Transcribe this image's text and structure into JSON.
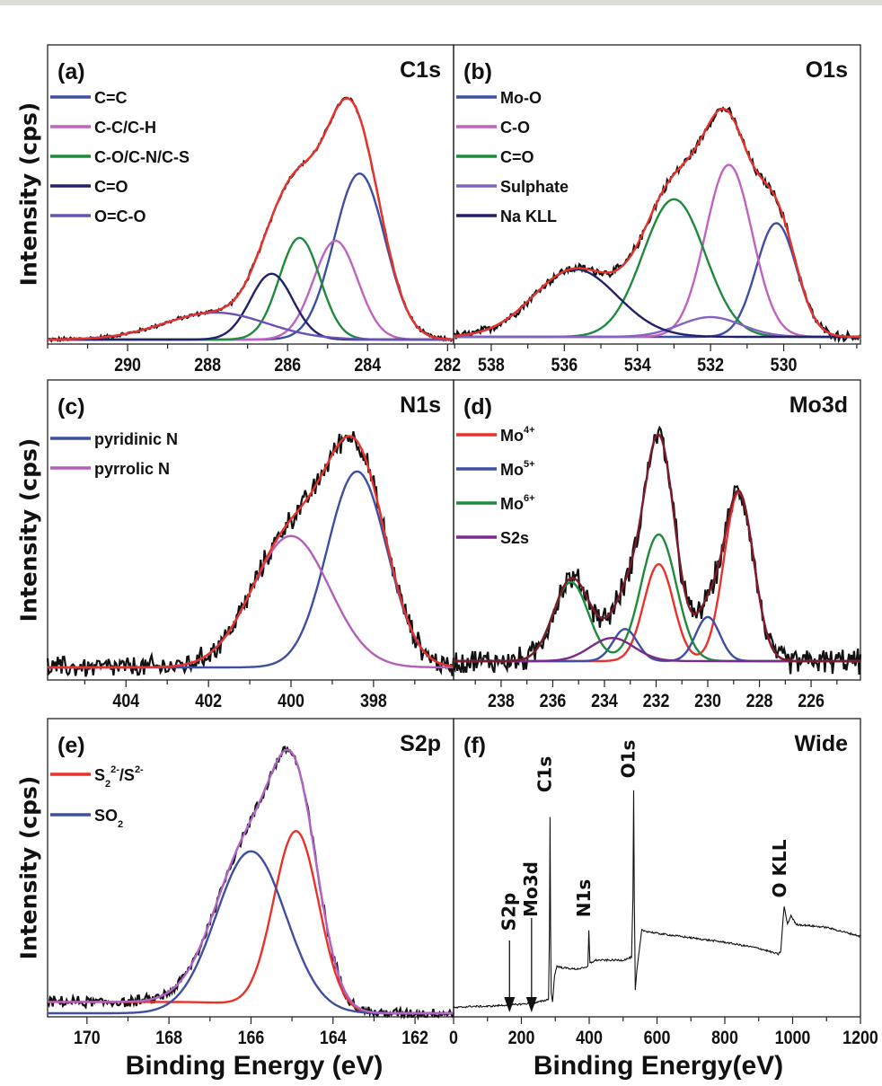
{
  "y_label": "Intensity (cps)",
  "chart_data": [
    {
      "id": "a",
      "type": "line",
      "label": "(a)",
      "title": "C1s",
      "xlim": [
        292,
        281.85
      ],
      "ylim": [
        0,
        1
      ],
      "xticks": [
        290,
        288,
        286,
        284,
        282
      ],
      "minor_step": 1,
      "baseline": 0.015,
      "envelope_color": "#e8322b",
      "components": [
        {
          "name": [
            {
              "t": "C=C"
            }
          ],
          "center": 284.2,
          "height": 0.555,
          "fwhm": 1.5,
          "color": "#3d4fa3"
        },
        {
          "name": [
            {
              "t": "C-C/C-H"
            }
          ],
          "center": 284.8,
          "height": 0.33,
          "fwhm": 1.3,
          "color": "#c262c0"
        },
        {
          "name": [
            {
              "t": "C-O/C-N/C-S"
            }
          ],
          "center": 285.7,
          "height": 0.34,
          "fwhm": 1.2,
          "color": "#1f8a3c"
        },
        {
          "name": [
            {
              "t": "C=O"
            }
          ],
          "center": 286.4,
          "height": 0.22,
          "fwhm": 1.25,
          "color": "#22226a"
        },
        {
          "name": [
            {
              "t": "O=C-O"
            }
          ],
          "center": 287.8,
          "height": 0.09,
          "fwhm": 3.0,
          "color": "#6a52b4"
        }
      ]
    },
    {
      "id": "b",
      "type": "line",
      "label": "(b)",
      "title": "O1s",
      "xlim": [
        539.03,
        527.9
      ],
      "ylim": [
        0,
        1
      ],
      "xticks": [
        538,
        536,
        534,
        532,
        530
      ],
      "minor_step": 1,
      "baseline": 0.024,
      "envelope_color": "#e8322b",
      "components": [
        {
          "name": [
            {
              "t": "Mo-O"
            }
          ],
          "center": 530.2,
          "height": 0.38,
          "fwhm": 1.3,
          "color": "#3d4fa3"
        },
        {
          "name": [
            {
              "t": "C-O"
            }
          ],
          "center": 531.5,
          "height": 0.575,
          "fwhm": 1.5,
          "color": "#c262c0"
        },
        {
          "name": [
            {
              "t": "C=O"
            }
          ],
          "center": 533.0,
          "height": 0.46,
          "fwhm": 2.0,
          "color": "#1f8a3c"
        },
        {
          "name": [
            {
              "t": "Sulphate"
            }
          ],
          "center": 532.0,
          "height": 0.066,
          "fwhm": 2.0,
          "color": "#8462c4"
        },
        {
          "name": [
            {
              "t": "Na KLL"
            }
          ],
          "center": 535.7,
          "height": 0.226,
          "fwhm": 2.7,
          "color": "#22226a"
        }
      ]
    },
    {
      "id": "c",
      "type": "line",
      "label": "(c)",
      "title": "N1s",
      "xlim": [
        405.9,
        396.06
      ],
      "ylim": [
        0,
        1
      ],
      "xticks": [
        404,
        402,
        400,
        398
      ],
      "minor_step": 1,
      "baseline": 0.042,
      "envelope_color": "#e8322b",
      "components": [
        {
          "name": [
            {
              "t": "pyridinic N"
            }
          ],
          "center": 398.4,
          "height": 0.653,
          "fwhm": 1.7,
          "color": "#3d4fa3"
        },
        {
          "name": [
            {
              "t": "pyrrolic N"
            }
          ],
          "center": 400.0,
          "height": 0.438,
          "fwhm": 2.2,
          "color": "#b35fb8"
        }
      ]
    },
    {
      "id": "d",
      "type": "line",
      "label": "(d)",
      "title": "Mo3d",
      "xlim": [
        239.84,
        224.09
      ],
      "ylim": [
        0,
        1
      ],
      "xticks": [
        238,
        236,
        234,
        232,
        230,
        228,
        226
      ],
      "minor_step": 1,
      "baseline": 0.063,
      "envelope_color": "#7a1c2c",
      "components": [
        {
          "name": [
            {
              "t": "Mo"
            },
            {
              "t": "4+",
              "sup": true
            }
          ],
          "color": "#e8322b",
          "peaks": [
            {
              "center": 228.8,
              "height": 0.563,
              "fwhm": 1.35
            },
            {
              "center": 231.9,
              "height": 0.323,
              "fwhm": 1.35
            }
          ]
        },
        {
          "name": [
            {
              "t": "Mo"
            },
            {
              "t": "5+",
              "sup": true
            }
          ],
          "color": "#3d4fa3",
          "peaks": [
            {
              "center": 230.0,
              "height": 0.147,
              "fwhm": 1.1
            },
            {
              "center": 233.2,
              "height": 0.107,
              "fwhm": 1.1
            }
          ]
        },
        {
          "name": [
            {
              "t": "Mo"
            },
            {
              "t": "6+",
              "sup": true
            }
          ],
          "color": "#1f8a3c",
          "peaks": [
            {
              "center": 231.9,
              "height": 0.422,
              "fwhm": 1.6
            },
            {
              "center": 235.3,
              "height": 0.263,
              "fwhm": 1.6
            }
          ]
        },
        {
          "name": [
            {
              "t": "S2s"
            }
          ],
          "color": "#7a2a8a",
          "peaks": [
            {
              "center": 233.7,
              "height": 0.077,
              "fwhm": 2.0
            }
          ]
        }
      ]
    },
    {
      "id": "e",
      "type": "line",
      "label": "(e)",
      "title": "S2p",
      "xlim": [
        170.96,
        161.06
      ],
      "ylim": [
        0,
        1
      ],
      "xticks": [
        170,
        168,
        166,
        164,
        162
      ],
      "minor_step": 1,
      "baseline": 0.012,
      "envelope_color": "#b064c4",
      "components": [
        {
          "name": [
            {
              "t": "S"
            },
            {
              "t": "2",
              "sub": true
            },
            {
              "t": "2-",
              "sup": true
            },
            {
              "t": "/S"
            },
            {
              "t": "2-",
              "sup": true
            }
          ],
          "center": 164.9,
          "height": 0.608,
          "fwhm": 1.3,
          "color": "#e8322b",
          "step": {
            "height": 0.038,
            "center": 165.9
          }
        },
        {
          "name": [
            {
              "t": "SO"
            },
            {
              "t": "2",
              "sub": true
            }
          ],
          "center": 166.0,
          "height": 0.543,
          "fwhm": 2.0,
          "color": "#3d4fa3"
        }
      ]
    },
    {
      "id": "f",
      "type": "line",
      "label": "(f)",
      "title": "Wide",
      "xlim": [
        0,
        1200
      ],
      "ylim": [
        0,
        1
      ],
      "xticks": [
        0,
        200,
        400,
        600,
        800,
        1000,
        1200
      ],
      "minor_step": 100,
      "xlabel": "Binding Energy(eV)",
      "series_color": "#111111",
      "points": [
        [
          0,
          0.03
        ],
        [
          50,
          0.035
        ],
        [
          100,
          0.035
        ],
        [
          160,
          0.04
        ],
        [
          165,
          0.045
        ],
        [
          170,
          0.04
        ],
        [
          225,
          0.045
        ],
        [
          229,
          0.065
        ],
        [
          233,
          0.045
        ],
        [
          270,
          0.055
        ],
        [
          280,
          0.06
        ],
        [
          283,
          0.3
        ],
        [
          284.5,
          0.67
        ],
        [
          286,
          0.3
        ],
        [
          288,
          0.08
        ],
        [
          292,
          0.05
        ],
        [
          298,
          0.14
        ],
        [
          305,
          0.17
        ],
        [
          320,
          0.165
        ],
        [
          360,
          0.16
        ],
        [
          390,
          0.165
        ],
        [
          396,
          0.17
        ],
        [
          399,
          0.29
        ],
        [
          402,
          0.18
        ],
        [
          420,
          0.19
        ],
        [
          500,
          0.19
        ],
        [
          525,
          0.2
        ],
        [
          529,
          0.4
        ],
        [
          531,
          0.76
        ],
        [
          533,
          0.4
        ],
        [
          536,
          0.09
        ],
        [
          540,
          0.15
        ],
        [
          555,
          0.29
        ],
        [
          600,
          0.28
        ],
        [
          700,
          0.265
        ],
        [
          800,
          0.25
        ],
        [
          900,
          0.23
        ],
        [
          958,
          0.21
        ],
        [
          965,
          0.22
        ],
        [
          972,
          0.33
        ],
        [
          975,
          0.37
        ],
        [
          985,
          0.31
        ],
        [
          995,
          0.34
        ],
        [
          1010,
          0.31
        ],
        [
          1100,
          0.3
        ],
        [
          1200,
          0.27
        ]
      ],
      "annotations": [
        {
          "text": "S2p",
          "x": 165,
          "arrow": true
        },
        {
          "text": "Mo3d",
          "x": 230,
          "arrow": true
        },
        {
          "text": "C1s",
          "x": 285
        },
        {
          "text": "N1s",
          "x": 400
        },
        {
          "text": "O1s",
          "x": 531
        },
        {
          "text": "O KLL",
          "x": 978
        }
      ]
    }
  ],
  "x_labels": {
    "left": "Binding Energy (eV)",
    "right": "Binding Energy(eV)"
  }
}
